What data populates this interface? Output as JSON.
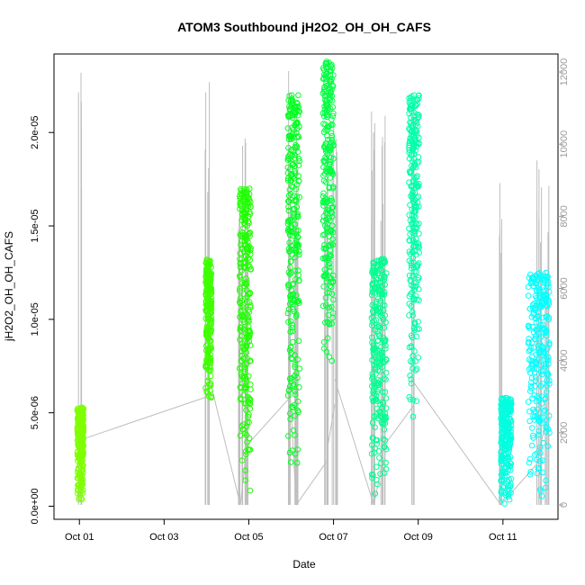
{
  "chart_data": {
    "type": "scatter",
    "title": "ATOM3 Southbound jH2O2_OH_OH_CAFS",
    "xlabel": "Date",
    "ylabel": "jH2O2_OH_OH_CAFS",
    "x_ticks": [
      "Oct 01",
      "Oct 03",
      "Oct 05",
      "Oct 07",
      "Oct 09",
      "Oct 11"
    ],
    "x_tick_days": [
      1,
      3,
      5,
      7,
      9,
      11
    ],
    "xlim_days": [
      0.4,
      12.3
    ],
    "y_ticks": [
      "0.0e+00",
      "5.0e-06",
      "1.0e-05",
      "1.5e-05",
      "2.0e-05"
    ],
    "y_tick_values": [
      0,
      5e-06,
      1e-05,
      1.5e-05,
      2e-05
    ],
    "ylim": [
      -7e-07,
      2.42e-05
    ],
    "y2_ticks": [
      "0",
      "2000",
      "4000",
      "6000",
      "8000",
      "10000",
      "12000"
    ],
    "y2_tick_values": [
      0,
      2000,
      4000,
      6000,
      8000,
      10000,
      12000
    ],
    "y2lim": [
      -400,
      12500
    ],
    "colors": {
      "altitude_line": "#bebebe",
      "scale": [
        "#80ff00",
        "#00ff00",
        "#00ff80",
        "#00ffff"
      ]
    },
    "series": [
      {
        "day_start": 0.95,
        "day_end": 1.1,
        "y_min": 2e-07,
        "y_max": 5.3e-06,
        "color": "#7fff00"
      },
      {
        "day_start": 3.98,
        "day_end": 4.12,
        "y_min": 5.5e-06,
        "y_max": 1.32e-05,
        "color": "#3fff00"
      },
      {
        "day_start": 4.78,
        "day_end": 5.05,
        "y_min": 3e-07,
        "y_max": 1.7e-05,
        "color": "#1fff00"
      },
      {
        "day_start": 5.92,
        "day_end": 6.2,
        "y_min": 1.5e-06,
        "y_max": 2.2e-05,
        "color": "#00ff20"
      },
      {
        "day_start": 6.75,
        "day_end": 7.0,
        "y_min": 7e-06,
        "y_max": 2.38e-05,
        "color": "#00ff40"
      },
      {
        "day_start": 7.9,
        "day_end": 8.25,
        "y_min": 1e-07,
        "y_max": 1.33e-05,
        "color": "#00ff90"
      },
      {
        "day_start": 8.78,
        "day_end": 9.02,
        "y_min": 4.3e-06,
        "y_max": 2.2e-05,
        "color": "#00ffa8"
      },
      {
        "day_start": 10.95,
        "day_end": 11.2,
        "y_min": 0,
        "y_max": 5.8e-06,
        "color": "#00ffe0"
      },
      {
        "day_start": 11.6,
        "day_end": 12.1,
        "y_min": 3e-07,
        "y_max": 1.25e-05,
        "color": "#00ffff"
      }
    ],
    "altitude_spikes": [
      {
        "day": 1.02,
        "alt_max": 12000
      },
      {
        "day": 4.02,
        "alt_max": 12500
      },
      {
        "day": 4.8,
        "alt_max": 10500
      },
      {
        "day": 4.92,
        "alt_max": 10700
      },
      {
        "day": 5.95,
        "alt_max": 12300
      },
      {
        "day": 6.12,
        "alt_max": 11800
      },
      {
        "day": 6.85,
        "alt_max": 10200
      },
      {
        "day": 7.03,
        "alt_max": 11600
      },
      {
        "day": 7.95,
        "alt_max": 11200
      },
      {
        "day": 8.18,
        "alt_max": 10800
      },
      {
        "day": 8.88,
        "alt_max": 11400
      },
      {
        "day": 10.95,
        "alt_max": 10200
      },
      {
        "day": 11.85,
        "alt_max": 10000
      },
      {
        "day": 12.05,
        "alt_max": 10000
      }
    ]
  }
}
